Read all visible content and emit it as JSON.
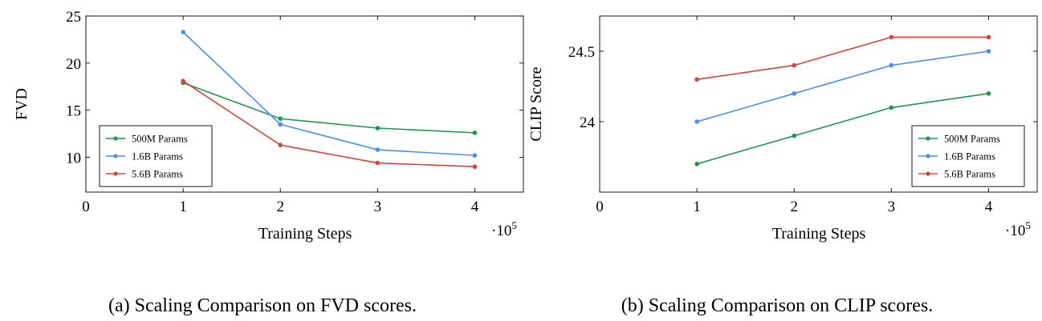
{
  "chart_data": [
    {
      "type": "line",
      "caption": "(a) Scaling Comparison on FVD scores.",
      "xlabel": "Training Steps",
      "ylabel": "FVD",
      "x_multiplier": "·10",
      "x_multiplier_exp": "5",
      "xlim": [
        0,
        4.5
      ],
      "ylim": [
        6.3,
        25
      ],
      "xticks": [
        0,
        1,
        2,
        3,
        4
      ],
      "xtick_labels": [
        "0",
        "1",
        "2",
        "3",
        "4"
      ],
      "yticks": [
        10,
        15,
        20,
        25
      ],
      "ytick_labels": [
        "10",
        "15",
        "20",
        "25"
      ],
      "legend": "lower-left",
      "grid": false,
      "x": [
        1,
        2,
        3,
        4
      ],
      "series": [
        {
          "name": "500M Params",
          "color": "#1a9850",
          "values": [
            17.9,
            14.1,
            13.1,
            12.6
          ]
        },
        {
          "name": "1.6B Params",
          "color": "#4a8ef0",
          "values": [
            23.3,
            13.5,
            10.8,
            10.2
          ]
        },
        {
          "name": "5.6B Params",
          "color": "#d9413a",
          "values": [
            18.1,
            11.3,
            9.4,
            9.0
          ]
        }
      ]
    },
    {
      "type": "line",
      "caption": "(b) Scaling Comparison on CLIP scores.",
      "xlabel": "Training Steps",
      "ylabel": "CLIP Score",
      "x_multiplier": "·10",
      "x_multiplier_exp": "5",
      "xlim": [
        0,
        4.5
      ],
      "ylim": [
        23.5,
        24.75
      ],
      "xticks": [
        0,
        1,
        2,
        3,
        4
      ],
      "xtick_labels": [
        "0",
        "1",
        "2",
        "3",
        "4"
      ],
      "yticks": [
        24,
        24.5
      ],
      "ytick_labels": [
        "24",
        "24.5"
      ],
      "legend": "lower-right",
      "grid": false,
      "x": [
        1,
        2,
        3,
        4
      ],
      "series": [
        {
          "name": "500M Params",
          "color": "#1a9850",
          "values": [
            23.7,
            23.9,
            24.1,
            24.2
          ]
        },
        {
          "name": "1.6B Params",
          "color": "#4a8ef0",
          "values": [
            24.0,
            24.2,
            24.4,
            24.5
          ]
        },
        {
          "name": "5.6B Params",
          "color": "#d9413a",
          "values": [
            24.3,
            24.4,
            24.6,
            24.6
          ]
        }
      ]
    }
  ]
}
